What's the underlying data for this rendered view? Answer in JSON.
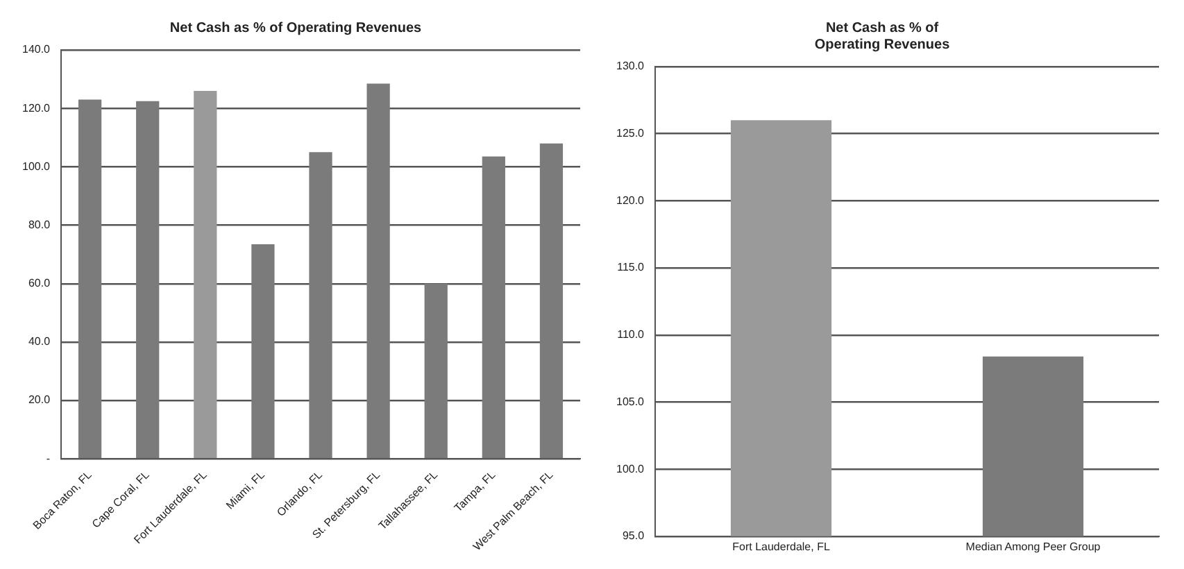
{
  "chart_data": [
    {
      "type": "bar",
      "title": "Net Cash as % of Operating Revenues",
      "categories": [
        "Boca Raton, FL",
        "Cape Coral, FL",
        "Fort Lauderdale, FL",
        "Miami, FL",
        "Orlando, FL",
        "St. Petersburg, FL",
        "Tallahassee, FL",
        "Tampa, FL",
        "West Palm Beach, FL"
      ],
      "values": [
        123,
        122.5,
        126,
        73.5,
        105,
        128.5,
        60,
        103.5,
        108
      ],
      "colors": [
        "#7b7b7b",
        "#7b7b7b",
        "#9a9a9a",
        "#7b7b7b",
        "#7b7b7b",
        "#7b7b7b",
        "#7b7b7b",
        "#7b7b7b",
        "#7b7b7b"
      ],
      "ylim": [
        0,
        140
      ],
      "yticks": [
        {
          "value": 0,
          "label": "-"
        },
        {
          "value": 20,
          "label": "20.0"
        },
        {
          "value": 40,
          "label": "40.0"
        },
        {
          "value": 60,
          "label": "60.0"
        },
        {
          "value": 80,
          "label": "80.0"
        },
        {
          "value": 100,
          "label": "100.0"
        },
        {
          "value": 120,
          "label": "120.0"
        },
        {
          "value": 140,
          "label": "140.0"
        }
      ],
      "grid": "y",
      "legend": false
    },
    {
      "type": "bar",
      "title": "Net Cash as % of\nOperating Revenues",
      "categories": [
        "Fort Lauderdale, FL",
        "Median Among Peer Group"
      ],
      "values": [
        126,
        108.4
      ],
      "colors": [
        "#9a9a9a",
        "#7b7b7b"
      ],
      "ylim": [
        95,
        130
      ],
      "yticks": [
        {
          "value": 95,
          "label": "95.0"
        },
        {
          "value": 100,
          "label": "100.0"
        },
        {
          "value": 105,
          "label": "105.0"
        },
        {
          "value": 110,
          "label": "110.0"
        },
        {
          "value": 115,
          "label": "115.0"
        },
        {
          "value": 120,
          "label": "120.0"
        },
        {
          "value": 125,
          "label": "125.0"
        },
        {
          "value": 130,
          "label": "130.0"
        }
      ],
      "grid": "y",
      "legend": false
    }
  ]
}
